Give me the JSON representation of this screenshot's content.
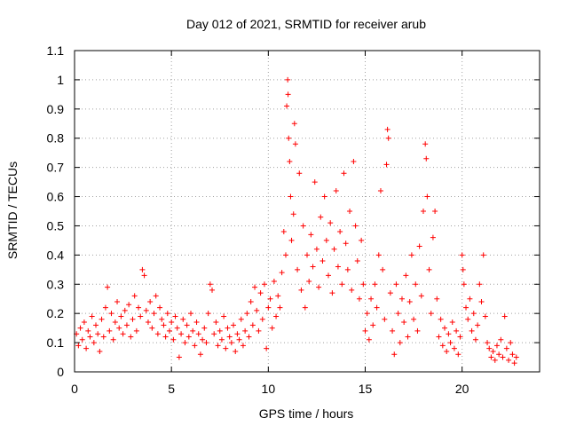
{
  "chart_data": {
    "type": "scatter",
    "title": "Day 012 of 2021, SRMTID for receiver arub",
    "xlabel": "GPS time / hours",
    "ylabel": "SRMTID / TECUs",
    "xlim": [
      0,
      24
    ],
    "ylim": [
      0,
      1.1
    ],
    "x_ticks": [
      0,
      5,
      10,
      15,
      20
    ],
    "x_tick_labels": [
      "0",
      "5",
      "10",
      "15",
      "20"
    ],
    "y_ticks": [
      0,
      0.1,
      0.2,
      0.3,
      0.4,
      0.5,
      0.6,
      0.7,
      0.8,
      0.9,
      1,
      1.1
    ],
    "y_tick_labels": [
      "0",
      "0.1",
      "0.2",
      "0.3",
      "0.4",
      "0.5",
      "0.6",
      "0.7",
      "0.8",
      "0.9",
      "1",
      "1.1"
    ],
    "grid": true,
    "marker": "+",
    "series": [
      {
        "name": "SRMTID",
        "color": "#ff0000",
        "points": [
          [
            0.1,
            0.13
          ],
          [
            0.2,
            0.09
          ],
          [
            0.3,
            0.15
          ],
          [
            0.4,
            0.11
          ],
          [
            0.5,
            0.17
          ],
          [
            0.6,
            0.08
          ],
          [
            0.7,
            0.14
          ],
          [
            0.8,
            0.12
          ],
          [
            0.9,
            0.19
          ],
          [
            1.0,
            0.1
          ],
          [
            1.1,
            0.16
          ],
          [
            1.2,
            0.13
          ],
          [
            1.3,
            0.07
          ],
          [
            1.4,
            0.18
          ],
          [
            1.5,
            0.12
          ],
          [
            1.6,
            0.22
          ],
          [
            1.7,
            0.29
          ],
          [
            1.8,
            0.14
          ],
          [
            1.9,
            0.2
          ],
          [
            2.0,
            0.11
          ],
          [
            2.1,
            0.17
          ],
          [
            2.2,
            0.24
          ],
          [
            2.3,
            0.15
          ],
          [
            2.4,
            0.19
          ],
          [
            2.5,
            0.13
          ],
          [
            2.6,
            0.21
          ],
          [
            2.7,
            0.16
          ],
          [
            2.8,
            0.23
          ],
          [
            2.9,
            0.12
          ],
          [
            3.0,
            0.18
          ],
          [
            3.1,
            0.26
          ],
          [
            3.2,
            0.14
          ],
          [
            3.3,
            0.22
          ],
          [
            3.4,
            0.19
          ],
          [
            3.5,
            0.35
          ],
          [
            3.6,
            0.33
          ],
          [
            3.7,
            0.21
          ],
          [
            3.8,
            0.17
          ],
          [
            3.9,
            0.24
          ],
          [
            4.0,
            0.15
          ],
          [
            4.1,
            0.2
          ],
          [
            4.2,
            0.26
          ],
          [
            4.3,
            0.13
          ],
          [
            4.4,
            0.22
          ],
          [
            4.5,
            0.18
          ],
          [
            4.6,
            0.16
          ],
          [
            4.7,
            0.12
          ],
          [
            4.8,
            0.2
          ],
          [
            4.9,
            0.14
          ],
          [
            5.0,
            0.17
          ],
          [
            5.1,
            0.11
          ],
          [
            5.2,
            0.19
          ],
          [
            5.3,
            0.15
          ],
          [
            5.4,
            0.05
          ],
          [
            5.5,
            0.13
          ],
          [
            5.6,
            0.18
          ],
          [
            5.7,
            0.1
          ],
          [
            5.8,
            0.16
          ],
          [
            5.9,
            0.12
          ],
          [
            6.0,
            0.2
          ],
          [
            6.1,
            0.14
          ],
          [
            6.2,
            0.09
          ],
          [
            6.3,
            0.17
          ],
          [
            6.4,
            0.13
          ],
          [
            6.5,
            0.06
          ],
          [
            6.6,
            0.11
          ],
          [
            6.7,
            0.15
          ],
          [
            6.8,
            0.1
          ],
          [
            6.9,
            0.2
          ],
          [
            7.0,
            0.3
          ],
          [
            7.1,
            0.28
          ],
          [
            7.2,
            0.13
          ],
          [
            7.3,
            0.17
          ],
          [
            7.4,
            0.09
          ],
          [
            7.5,
            0.14
          ],
          [
            7.6,
            0.11
          ],
          [
            7.7,
            0.19
          ],
          [
            7.8,
            0.08
          ],
          [
            7.9,
            0.15
          ],
          [
            8.0,
            0.12
          ],
          [
            8.1,
            0.1
          ],
          [
            8.2,
            0.16
          ],
          [
            8.3,
            0.07
          ],
          [
            8.4,
            0.13
          ],
          [
            8.5,
            0.11
          ],
          [
            8.6,
            0.18
          ],
          [
            8.7,
            0.09
          ],
          [
            8.8,
            0.14
          ],
          [
            8.9,
            0.2
          ],
          [
            9.0,
            0.12
          ],
          [
            9.1,
            0.24
          ],
          [
            9.2,
            0.16
          ],
          [
            9.3,
            0.29
          ],
          [
            9.4,
            0.21
          ],
          [
            9.5,
            0.14
          ],
          [
            9.6,
            0.27
          ],
          [
            9.7,
            0.18
          ],
          [
            9.8,
            0.3
          ],
          [
            9.9,
            0.08
          ],
          [
            10.0,
            0.22
          ],
          [
            10.1,
            0.25
          ],
          [
            10.2,
            0.15
          ],
          [
            10.3,
            0.31
          ],
          [
            10.4,
            0.19
          ],
          [
            10.5,
            0.26
          ],
          [
            10.6,
            0.22
          ],
          [
            10.7,
            0.34
          ],
          [
            10.8,
            0.48
          ],
          [
            10.9,
            0.4
          ],
          [
            10.95,
            0.91
          ],
          [
            11.0,
            1.0
          ],
          [
            11.02,
            0.95
          ],
          [
            11.05,
            0.8
          ],
          [
            11.1,
            0.72
          ],
          [
            11.15,
            0.6
          ],
          [
            11.2,
            0.45
          ],
          [
            11.3,
            0.54
          ],
          [
            11.35,
            0.85
          ],
          [
            11.4,
            0.78
          ],
          [
            11.5,
            0.35
          ],
          [
            11.6,
            0.68
          ],
          [
            11.7,
            0.28
          ],
          [
            11.8,
            0.5
          ],
          [
            11.9,
            0.22
          ],
          [
            12.0,
            0.4
          ],
          [
            12.1,
            0.31
          ],
          [
            12.2,
            0.47
          ],
          [
            12.3,
            0.36
          ],
          [
            12.4,
            0.65
          ],
          [
            12.5,
            0.42
          ],
          [
            12.6,
            0.29
          ],
          [
            12.7,
            0.53
          ],
          [
            12.8,
            0.38
          ],
          [
            12.9,
            0.6
          ],
          [
            13.0,
            0.45
          ],
          [
            13.1,
            0.33
          ],
          [
            13.2,
            0.51
          ],
          [
            13.3,
            0.27
          ],
          [
            13.4,
            0.42
          ],
          [
            13.5,
            0.62
          ],
          [
            13.6,
            0.36
          ],
          [
            13.7,
            0.48
          ],
          [
            13.8,
            0.3
          ],
          [
            13.9,
            0.68
          ],
          [
            14.0,
            0.44
          ],
          [
            14.1,
            0.35
          ],
          [
            14.2,
            0.55
          ],
          [
            14.3,
            0.28
          ],
          [
            14.4,
            0.72
          ],
          [
            14.5,
            0.5
          ],
          [
            14.6,
            0.38
          ],
          [
            14.7,
            0.25
          ],
          [
            14.8,
            0.45
          ],
          [
            14.9,
            0.3
          ],
          [
            15.0,
            0.14
          ],
          [
            15.1,
            0.2
          ],
          [
            15.2,
            0.11
          ],
          [
            15.3,
            0.25
          ],
          [
            15.4,
            0.16
          ],
          [
            15.5,
            0.3
          ],
          [
            15.6,
            0.22
          ],
          [
            15.7,
            0.4
          ],
          [
            15.8,
            0.62
          ],
          [
            15.9,
            0.35
          ],
          [
            16.0,
            0.18
          ],
          [
            16.1,
            0.71
          ],
          [
            16.15,
            0.83
          ],
          [
            16.2,
            0.8
          ],
          [
            16.3,
            0.27
          ],
          [
            16.4,
            0.14
          ],
          [
            16.5,
            0.06
          ],
          [
            16.6,
            0.3
          ],
          [
            16.7,
            0.2
          ],
          [
            16.8,
            0.1
          ],
          [
            16.9,
            0.25
          ],
          [
            17.0,
            0.17
          ],
          [
            17.1,
            0.33
          ],
          [
            17.2,
            0.12
          ],
          [
            17.3,
            0.24
          ],
          [
            17.4,
            0.4
          ],
          [
            17.5,
            0.18
          ],
          [
            17.6,
            0.3
          ],
          [
            17.7,
            0.14
          ],
          [
            17.8,
            0.43
          ],
          [
            17.9,
            0.26
          ],
          [
            18.0,
            0.55
          ],
          [
            18.1,
            0.78
          ],
          [
            18.15,
            0.73
          ],
          [
            18.2,
            0.6
          ],
          [
            18.3,
            0.35
          ],
          [
            18.4,
            0.2
          ],
          [
            18.5,
            0.46
          ],
          [
            18.6,
            0.55
          ],
          [
            18.7,
            0.25
          ],
          [
            18.8,
            0.12
          ],
          [
            18.9,
            0.18
          ],
          [
            19.0,
            0.09
          ],
          [
            19.1,
            0.15
          ],
          [
            19.2,
            0.07
          ],
          [
            19.3,
            0.13
          ],
          [
            19.4,
            0.1
          ],
          [
            19.5,
            0.17
          ],
          [
            19.6,
            0.08
          ],
          [
            19.7,
            0.14
          ],
          [
            19.8,
            0.06
          ],
          [
            19.9,
            0.12
          ],
          [
            20.0,
            0.4
          ],
          [
            20.05,
            0.35
          ],
          [
            20.1,
            0.3
          ],
          [
            20.2,
            0.22
          ],
          [
            20.3,
            0.18
          ],
          [
            20.4,
            0.25
          ],
          [
            20.5,
            0.14
          ],
          [
            20.6,
            0.2
          ],
          [
            20.7,
            0.11
          ],
          [
            20.8,
            0.16
          ],
          [
            20.9,
            0.3
          ],
          [
            21.0,
            0.24
          ],
          [
            21.1,
            0.4
          ],
          [
            21.2,
            0.19
          ],
          [
            21.3,
            0.1
          ],
          [
            21.4,
            0.08
          ],
          [
            21.5,
            0.05
          ],
          [
            21.6,
            0.07
          ],
          [
            21.7,
            0.04
          ],
          [
            21.8,
            0.09
          ],
          [
            21.9,
            0.06
          ],
          [
            22.0,
            0.11
          ],
          [
            22.1,
            0.05
          ],
          [
            22.2,
            0.19
          ],
          [
            22.3,
            0.08
          ],
          [
            22.4,
            0.04
          ],
          [
            22.5,
            0.1
          ],
          [
            22.6,
            0.06
          ],
          [
            22.7,
            0.03
          ],
          [
            22.8,
            0.05
          ]
        ]
      }
    ]
  }
}
